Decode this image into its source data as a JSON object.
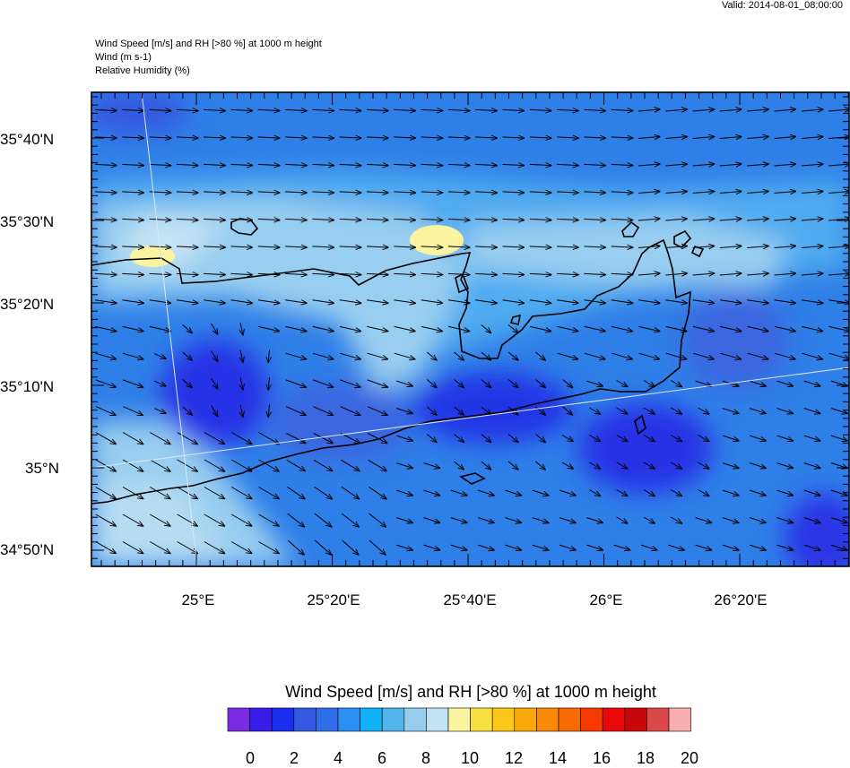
{
  "header": {
    "valid": "Valid: 2014-08-01_08:00:00",
    "title_lines": [
      "Wind Speed [m/s] and RH [>80 %] at 1000 m height",
      "Wind   (m s-1)",
      "Relative Humidity   (%)"
    ]
  },
  "axes": {
    "lat_labels": [
      "35°40'N",
      "35°30'N",
      "35°20'N",
      "35°10'N",
      "35°N",
      "34°50'N"
    ],
    "lon_labels": [
      "25°E",
      "25°20'E",
      "25°40'E",
      "26°E",
      "26°20'E"
    ]
  },
  "colorbar": {
    "title": "Wind Speed [m/s] and RH [>80 %] at 1000 m height",
    "colors": [
      "#7b2be4",
      "#3a1ce8",
      "#1a2ef0",
      "#3458e0",
      "#2f6ee8",
      "#2a8ef2",
      "#12b0f5",
      "#53b4ec",
      "#96ccec",
      "#c2e2f2",
      "#fbf3a0",
      "#f8df40",
      "#fbc81a",
      "#f9aa0a",
      "#fa8a05",
      "#f86a05",
      "#f63a05",
      "#e80808",
      "#c80808",
      "#da4848",
      "#f6aeae"
    ],
    "tick_labels": [
      "0",
      "2",
      "4",
      "6",
      "8",
      "10",
      "12",
      "14",
      "16",
      "18",
      "20"
    ]
  },
  "wind": {
    "mean_direction": "east",
    "arrows": "black"
  }
}
